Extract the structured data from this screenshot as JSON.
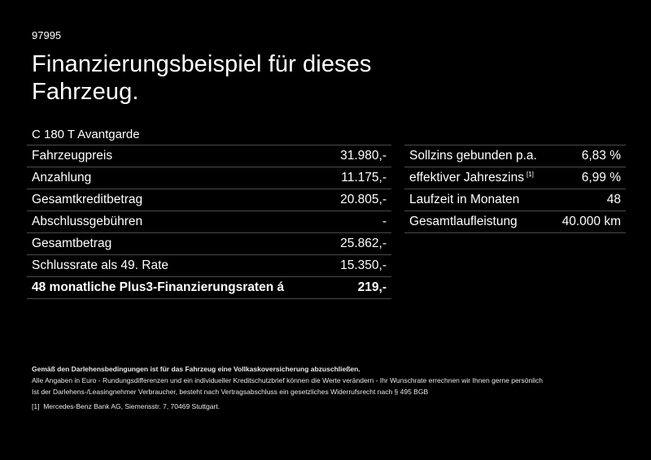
{
  "header": {
    "code": "97995",
    "title_line1": "Finanzierungsbeispiel für dieses",
    "title_line2": "Fahrzeug.",
    "model": "C 180 T Avantgarde"
  },
  "left_table": [
    {
      "label": "Fahrzeugpreis",
      "value": "31.980,-"
    },
    {
      "label": "Anzahlung",
      "value": "11.175,-"
    },
    {
      "label": "Gesamtkreditbetrag",
      "value": "20.805,-"
    },
    {
      "label": "Abschlussgebühren",
      "value": "-"
    },
    {
      "label": "Gesamtbetrag",
      "value": "25.862,-"
    },
    {
      "label": "Schlussrate als 49. Rate",
      "value": "15.350,-"
    },
    {
      "label": "48 monatliche Plus3-Finanzierungsraten á",
      "value": "219,-"
    }
  ],
  "right_table": [
    {
      "label": "Sollzins gebunden p.a.",
      "value": "6,83 %"
    },
    {
      "label": "effektiver Jahreszins",
      "sup": "[1]",
      "value": "6,99 %"
    },
    {
      "label": "Laufzeit in Monaten",
      "value": "48"
    },
    {
      "label": "Gesamtlaufleistung",
      "value": "40.000 km"
    }
  ],
  "footer": {
    "bold_line": "Gemäß den Darlehensbedingungen ist für das Fahrzeug eine Vollkaskoversicherung abzuschließen.",
    "line1": "Alle Angaben in Euro - Rundungsdifferenzen und ein individueller Kreditschutzbrief können die Werte verändern - Ihr Wunschrate errechnen wir Ihnen gerne persönlich",
    "line2": "Ist der Darlehens-/Leasingnehmer Verbraucher, besteht nach Vertragsabschluss ein gesetzliches Widerrufsrecht nach § 495 BGB",
    "note_mark": "[1]",
    "note_text": "Mercedes-Benz Bank AG, Siemensstr. 7, 70469 Stuttgart."
  }
}
